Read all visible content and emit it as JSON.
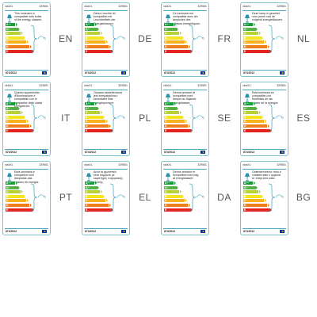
{
  "brand": "vidaXL",
  "code": "329581",
  "regulation": "874/2012",
  "energy_classes": [
    {
      "letter": "A",
      "sup": "++",
      "color": "#1a9a3c"
    },
    {
      "letter": "A",
      "sup": "+",
      "color": "#55b146"
    },
    {
      "letter": "A",
      "sup": "",
      "color": "#b6d035"
    },
    {
      "letter": "B",
      "sup": "",
      "color": "#f5e51c"
    },
    {
      "letter": "C",
      "sup": "",
      "color": "#f9b21b"
    },
    {
      "letter": "D",
      "sup": "",
      "color": "#ef7d1b"
    },
    {
      "letter": "E",
      "sup": "",
      "color": "#e3241c"
    }
  ],
  "labels": [
    {
      "lang": "EN",
      "text": "This luminaire is\ncompatible with bulbs\nof the energy classes:"
    },
    {
      "lang": "DE",
      "text": "Diese Leuchte ist\nkompatibel mit\nLeuchtmitteln der\nEnergieklassen:"
    },
    {
      "lang": "FR",
      "text": "Ce luminaire est\ncompatible avec les\nampoules des\nclasses énergétiques:"
    },
    {
      "lang": "NL",
      "text": "Deze lamp is geschikt\nvoor peren van de\nvolgend energieklassen:"
    },
    {
      "lang": "IT",
      "text": "Questo apparecchio\nd'illuminazione è\ncompatibile con le\nlampadine delle classi\nenergetiche:"
    },
    {
      "lang": "PL",
      "text": "Oprawa oświetleniowa\njest kompatybilna z\nżarówkami klas\nenergetycznych:"
    },
    {
      "lang": "SE",
      "text": "Denna armatur är\nkompatibel med\nlampor av följande\nenergiklasser:"
    },
    {
      "lang": "ES",
      "text": "Esta luminaria es\ncompatible con\nbombillas de las\nclases de la energía:"
    },
    {
      "lang": "PT",
      "text": "Esta luminária é\ncompatível com\nlâmpadas das\nclasses de energia:"
    },
    {
      "lang": "EL",
      "text": "Αυτό το φωτιστικό\nείναι συμβατό με\nλαμπτήρες ενεργειακής\nκλάσης:"
    },
    {
      "lang": "DA",
      "text": "Denne armatur er\nkompatibel med bag\naf energiklasser:"
    },
    {
      "lang": "BG",
      "text": "Осветителното тяло е\nсъвместимо с крушки\nот енергиен клас:"
    }
  ]
}
